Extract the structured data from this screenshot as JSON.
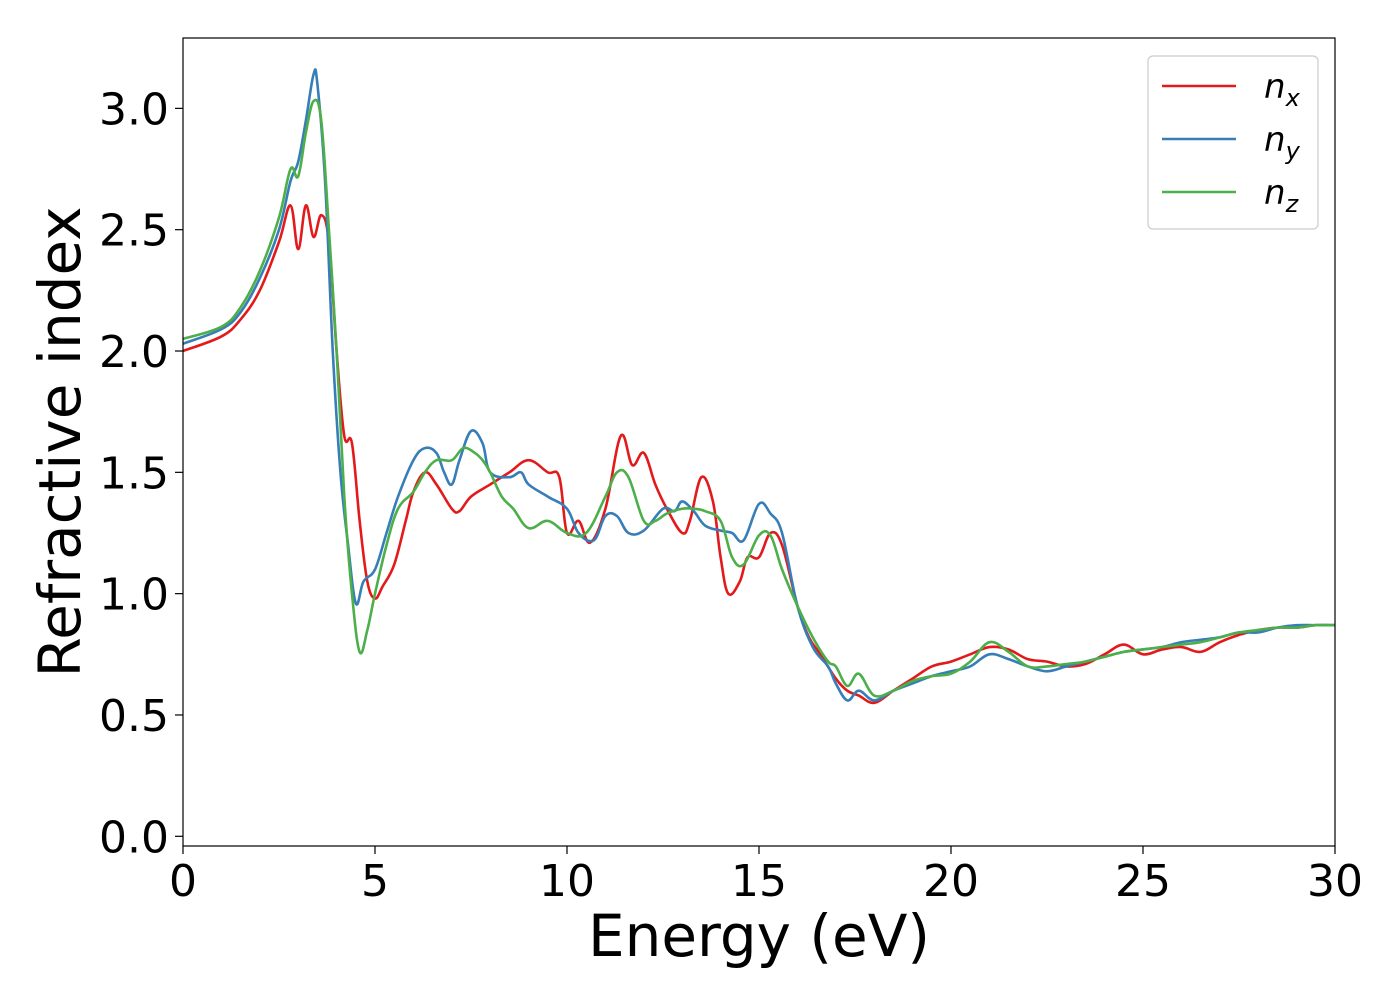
{
  "chart_data": {
    "type": "line",
    "title": "",
    "xlabel": "Energy (eV)",
    "ylabel": "Refractive index",
    "xlim": [
      0,
      30
    ],
    "ylim": [
      -0.04,
      3.29
    ],
    "xticks": [
      0,
      5,
      10,
      15,
      20,
      25,
      30
    ],
    "xtick_labels": [
      "0",
      "5",
      "10",
      "15",
      "20",
      "25",
      "30"
    ],
    "yticks": [
      0.0,
      0.5,
      1.0,
      1.5,
      2.0,
      2.5,
      3.0
    ],
    "ytick_labels": [
      "0.0",
      "0.5",
      "1.0",
      "1.5",
      "2.0",
      "2.5",
      "3.0"
    ],
    "grid": false,
    "legend_position": "top-right",
    "series": [
      {
        "name": "n_x",
        "legend_base": "n",
        "legend_sub": "x",
        "color": "#e31a1c",
        "x": [
          0,
          1,
          1.5,
          2,
          2.5,
          2.8,
          3.0,
          3.2,
          3.4,
          3.6,
          3.8,
          4.0,
          4.2,
          4.4,
          4.6,
          4.8,
          5.0,
          5.2,
          5.5,
          5.8,
          6.0,
          6.3,
          6.6,
          7.0,
          7.2,
          7.5,
          8.0,
          8.5,
          9.0,
          9.5,
          9.8,
          10.0,
          10.3,
          10.6,
          11.0,
          11.4,
          11.7,
          12.0,
          12.3,
          12.6,
          13.0,
          13.2,
          13.5,
          13.8,
          14.0,
          14.2,
          14.5,
          14.7,
          15.0,
          15.3,
          15.6,
          16.0,
          16.3,
          16.6,
          17.0,
          17.3,
          17.6,
          18.0,
          18.5,
          19.0,
          19.5,
          20.0,
          20.5,
          21.0,
          21.5,
          22.0,
          22.5,
          23.0,
          23.5,
          24.0,
          24.5,
          25.0,
          25.5,
          26.0,
          26.5,
          27.0,
          27.5,
          28.0,
          28.5,
          29.0,
          29.5,
          30.0
        ],
        "y": [
          2.0,
          2.06,
          2.13,
          2.25,
          2.45,
          2.6,
          2.42,
          2.6,
          2.47,
          2.56,
          2.45,
          2.0,
          1.65,
          1.62,
          1.3,
          1.05,
          0.98,
          1.03,
          1.12,
          1.3,
          1.42,
          1.5,
          1.45,
          1.35,
          1.34,
          1.4,
          1.45,
          1.5,
          1.55,
          1.5,
          1.48,
          1.25,
          1.3,
          1.21,
          1.35,
          1.65,
          1.53,
          1.58,
          1.45,
          1.35,
          1.25,
          1.3,
          1.48,
          1.38,
          1.15,
          1.0,
          1.05,
          1.15,
          1.15,
          1.25,
          1.2,
          0.95,
          0.82,
          0.75,
          0.65,
          0.6,
          0.58,
          0.55,
          0.6,
          0.65,
          0.7,
          0.72,
          0.75,
          0.78,
          0.77,
          0.73,
          0.72,
          0.7,
          0.71,
          0.75,
          0.79,
          0.75,
          0.77,
          0.78,
          0.76,
          0.8,
          0.83,
          0.85,
          0.86,
          0.86,
          0.87,
          0.87
        ]
      },
      {
        "name": "n_y",
        "legend_base": "n",
        "legend_sub": "y",
        "color": "#377eb8",
        "x": [
          0,
          1,
          1.5,
          2,
          2.5,
          2.8,
          3.0,
          3.2,
          3.4,
          3.5,
          3.7,
          3.9,
          4.1,
          4.3,
          4.5,
          4.7,
          5.0,
          5.3,
          5.6,
          6.0,
          6.3,
          6.6,
          6.8,
          7.0,
          7.2,
          7.5,
          7.8,
          8.0,
          8.5,
          8.8,
          9.0,
          9.5,
          10.0,
          10.3,
          10.7,
          11.0,
          11.3,
          11.6,
          12.0,
          12.5,
          12.8,
          13.0,
          13.3,
          13.6,
          14.0,
          14.3,
          14.6,
          15.0,
          15.3,
          15.6,
          16.0,
          16.4,
          16.8,
          17.0,
          17.3,
          17.6,
          18.0,
          18.5,
          19.0,
          19.5,
          20.0,
          20.5,
          21.0,
          21.5,
          22.0,
          22.5,
          23.0,
          23.5,
          24.0,
          24.5,
          25.0,
          25.5,
          26.0,
          26.5,
          27.0,
          27.5,
          28.0,
          28.5,
          29.0,
          29.5,
          30.0
        ],
        "y": [
          2.03,
          2.09,
          2.16,
          2.3,
          2.5,
          2.7,
          2.78,
          2.95,
          3.14,
          3.1,
          2.7,
          2.0,
          1.5,
          1.2,
          0.96,
          1.05,
          1.1,
          1.25,
          1.4,
          1.55,
          1.6,
          1.58,
          1.5,
          1.45,
          1.55,
          1.67,
          1.62,
          1.5,
          1.48,
          1.5,
          1.45,
          1.4,
          1.35,
          1.25,
          1.22,
          1.32,
          1.32,
          1.25,
          1.26,
          1.35,
          1.34,
          1.38,
          1.34,
          1.28,
          1.26,
          1.25,
          1.22,
          1.37,
          1.33,
          1.25,
          0.95,
          0.78,
          0.7,
          0.63,
          0.56,
          0.6,
          0.56,
          0.6,
          0.63,
          0.66,
          0.68,
          0.7,
          0.75,
          0.73,
          0.7,
          0.68,
          0.7,
          0.72,
          0.74,
          0.76,
          0.77,
          0.78,
          0.8,
          0.81,
          0.82,
          0.84,
          0.84,
          0.86,
          0.87,
          0.87,
          0.87
        ]
      },
      {
        "name": "n_z",
        "legend_base": "n",
        "legend_sub": "z",
        "color": "#4daf4a",
        "x": [
          0,
          1,
          1.5,
          2,
          2.5,
          2.8,
          3.0,
          3.2,
          3.4,
          3.6,
          3.8,
          4.0,
          4.2,
          4.4,
          4.6,
          4.8,
          5.0,
          5.3,
          5.6,
          6.0,
          6.3,
          6.6,
          7.0,
          7.3,
          7.6,
          7.8,
          8.0,
          8.3,
          8.6,
          9.0,
          9.5,
          10.0,
          10.5,
          11.0,
          11.3,
          11.6,
          12.0,
          12.3,
          12.6,
          13.0,
          13.3,
          13.6,
          14.0,
          14.3,
          14.6,
          15.0,
          15.3,
          15.6,
          16.0,
          16.4,
          16.8,
          17.0,
          17.3,
          17.6,
          18.0,
          18.5,
          19.0,
          19.5,
          20.0,
          20.5,
          21.0,
          21.5,
          22.0,
          22.5,
          23.0,
          23.5,
          24.0,
          24.5,
          25.0,
          25.5,
          26.0,
          26.5,
          27.0,
          27.5,
          28.0,
          28.5,
          29.0,
          29.5,
          30.0
        ],
        "y": [
          2.05,
          2.1,
          2.18,
          2.33,
          2.55,
          2.75,
          2.72,
          2.9,
          3.03,
          2.95,
          2.5,
          2.0,
          1.4,
          1.0,
          0.76,
          0.85,
          1.0,
          1.2,
          1.35,
          1.42,
          1.5,
          1.55,
          1.55,
          1.6,
          1.58,
          1.55,
          1.5,
          1.4,
          1.35,
          1.27,
          1.3,
          1.25,
          1.25,
          1.4,
          1.5,
          1.48,
          1.3,
          1.3,
          1.33,
          1.35,
          1.35,
          1.34,
          1.3,
          1.15,
          1.12,
          1.24,
          1.24,
          1.1,
          0.95,
          0.82,
          0.72,
          0.7,
          0.62,
          0.67,
          0.58,
          0.6,
          0.64,
          0.66,
          0.67,
          0.72,
          0.8,
          0.76,
          0.7,
          0.7,
          0.71,
          0.72,
          0.74,
          0.76,
          0.77,
          0.78,
          0.79,
          0.8,
          0.82,
          0.84,
          0.85,
          0.86,
          0.86,
          0.87,
          0.87
        ]
      }
    ]
  }
}
